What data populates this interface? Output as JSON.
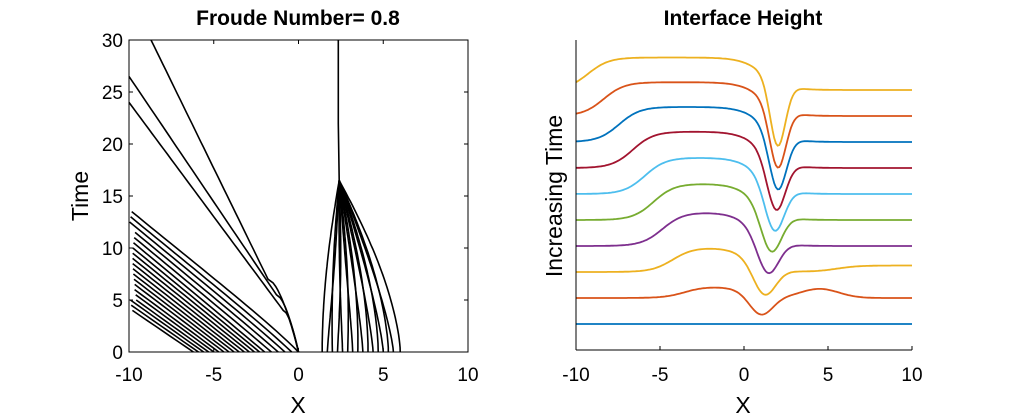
{
  "chart_data": [
    {
      "type": "line",
      "title": "Froude Number= 0.8",
      "xlabel": "X",
      "ylabel": "Time",
      "xlim": [
        -10,
        10
      ],
      "ylim": [
        0,
        30
      ],
      "xticks": [
        "-10",
        "-5",
        "0",
        "5",
        "10"
      ],
      "yticks": [
        "0",
        "5",
        "10",
        "15",
        "20",
        "25",
        "30"
      ],
      "grid": false,
      "box": true,
      "line_color": "#000000",
      "characteristics_left": [
        {
          "x0": -6.2,
          "slope": -1.0,
          "curve": 0.0
        },
        {
          "x0": -5.9,
          "slope": -0.98,
          "curve": 0.0
        },
        {
          "x0": -5.6,
          "slope": -0.96,
          "curve": 0.0
        },
        {
          "x0": -5.3,
          "slope": -0.95,
          "curve": 0.0
        },
        {
          "x0": -5.0,
          "slope": -0.93,
          "curve": 0.0
        },
        {
          "x0": -4.7,
          "slope": -0.92,
          "curve": 0.0
        },
        {
          "x0": -4.4,
          "slope": -0.9,
          "curve": 0.0
        },
        {
          "x0": -4.1,
          "slope": -0.89,
          "curve": 0.0
        },
        {
          "x0": -3.8,
          "slope": -0.88,
          "curve": 0.0
        },
        {
          "x0": -3.5,
          "slope": -0.87,
          "curve": 0.0
        },
        {
          "x0": -3.2,
          "slope": -0.86,
          "curve": 0.0
        },
        {
          "x0": -2.9,
          "slope": -0.85,
          "curve": 0.0
        },
        {
          "x0": -2.6,
          "slope": -0.84,
          "curve": 0.0
        },
        {
          "x0": -2.3,
          "slope": -0.83,
          "curve": 0.0
        },
        {
          "x0": -2.0,
          "slope": -0.82,
          "curve": 0.1
        },
        {
          "x0": -1.6,
          "slope": -0.82,
          "curve": 0.2
        },
        {
          "x0": -1.2,
          "slope": -0.82,
          "curve": 0.35
        },
        {
          "x0": -0.8,
          "slope": -0.82,
          "curve": 0.55
        },
        {
          "x0": -0.4,
          "slope": -0.82,
          "curve": 0.8
        },
        {
          "x0": 0.0,
          "slope": -0.82,
          "curve": 1.2
        }
      ],
      "outer_left_lines": [
        {
          "x_top": -8.7,
          "t_top": 30,
          "x_bend": -1.8,
          "t_bend": 7.0
        },
        {
          "x_top": -10.0,
          "t_top": 26.5,
          "x_bend": -1.3,
          "t_bend": 5.5
        },
        {
          "x_top": -10.0,
          "t_top": 24.0,
          "x_bend": -0.9,
          "t_bend": 4.0
        }
      ],
      "characteristics_right": [
        {
          "x0": 1.4
        },
        {
          "x0": 1.7
        },
        {
          "x0": 2.0
        },
        {
          "x0": 2.3
        },
        {
          "x0": 2.6
        },
        {
          "x0": 2.9
        },
        {
          "x0": 3.2
        },
        {
          "x0": 3.5
        },
        {
          "x0": 3.8
        },
        {
          "x0": 4.1
        },
        {
          "x0": 4.4
        },
        {
          "x0": 4.7
        },
        {
          "x0": 5.0
        },
        {
          "x0": 5.3
        },
        {
          "x0": 5.6
        },
        {
          "x0": 6.0
        }
      ],
      "shock": {
        "x": 2.4,
        "t_start": 16.5,
        "t_end": 30
      }
    },
    {
      "type": "line",
      "title": "Interface Height",
      "xlabel": "X",
      "ylabel": "Increasing Time",
      "xlim": [
        -10,
        10
      ],
      "xticks": [
        "-10",
        "-5",
        "0",
        "5",
        "10"
      ],
      "grid": false,
      "box": false,
      "palette": [
        "#0072BD",
        "#D95319",
        "#EDB120",
        "#7E2F8E",
        "#77AC30",
        "#4DBEEE",
        "#A2142F",
        "#0072BD",
        "#D95319",
        "#EDB120"
      ],
      "offsets": [
        0,
        1,
        2,
        3,
        4,
        5,
        6,
        7,
        8,
        9
      ],
      "curves": [
        {
          "bump_x": 0.0,
          "bump_h": 0.0,
          "dip_x": 1.0,
          "dip_d": 0.0,
          "right_rise": 0.0
        },
        {
          "bump_x": -1.8,
          "bump_h": 0.45,
          "dip_x": 1.0,
          "dip_d": -0.75,
          "right_rise": 0.0
        },
        {
          "bump_x": -2.4,
          "bump_h": 0.95,
          "dip_x": 1.2,
          "dip_d": -1.1,
          "right_rise": 0.25
        },
        {
          "bump_x": -2.9,
          "bump_h": 1.3,
          "dip_x": 1.4,
          "dip_d": -1.35,
          "right_rise": 0.0
        },
        {
          "bump_x": -3.3,
          "bump_h": 1.4,
          "dip_x": 1.6,
          "dip_d": -1.55,
          "right_rise": 0.0
        },
        {
          "bump_x": -3.7,
          "bump_h": 1.4,
          "dip_x": 1.8,
          "dip_d": -1.75,
          "right_rise": 0.0
        },
        {
          "bump_x": -4.3,
          "bump_h": 1.4,
          "dip_x": 1.9,
          "dip_d": -1.95,
          "right_rise": 0.0
        },
        {
          "bump_x": -5.0,
          "bump_h": 1.35,
          "dip_x": 2.0,
          "dip_d": -2.15,
          "right_rise": 0.0
        },
        {
          "bump_x": -5.8,
          "bump_h": 1.3,
          "dip_x": 2.0,
          "dip_d": -2.3,
          "right_rise": 0.0
        },
        {
          "bump_x": -6.6,
          "bump_h": 1.25,
          "dip_x": 2.0,
          "dip_d": -2.45,
          "right_rise": 0.0
        }
      ]
    }
  ]
}
